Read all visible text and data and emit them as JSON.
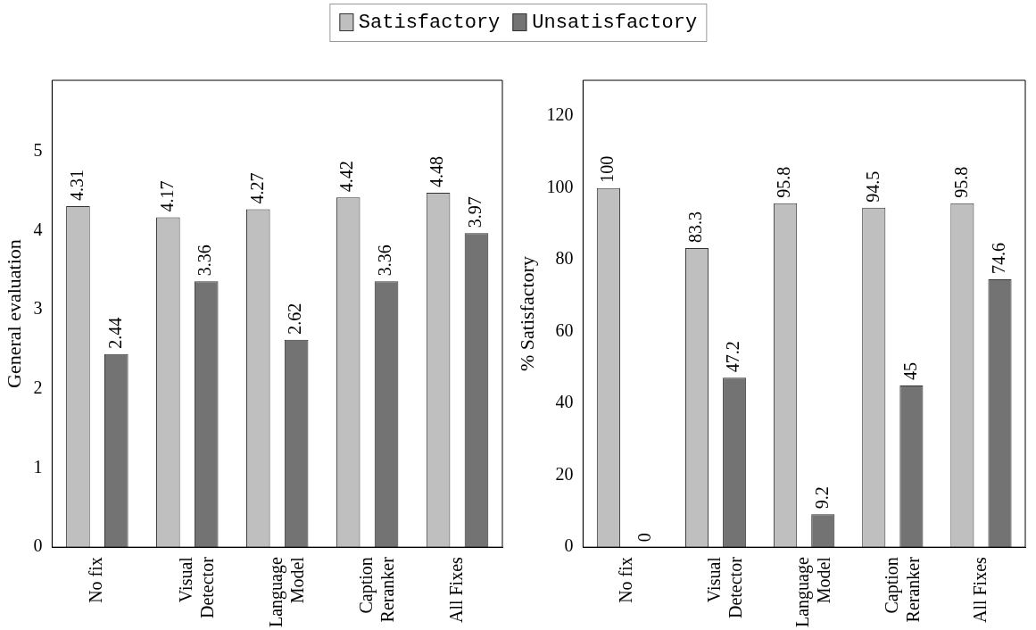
{
  "chart_data": [
    {
      "type": "bar",
      "ylabel": "General evaluation",
      "categories": [
        "No fix",
        "Visual\nDetector",
        "Language\nModel",
        "Caption\nReranker",
        "All Fixes"
      ],
      "ylim": [
        0,
        5.9
      ],
      "yticks": [
        0,
        1,
        2,
        3,
        4,
        5
      ],
      "legend": "top",
      "data_labels": true,
      "grid": false,
      "series": [
        {
          "name": "Satisfactory",
          "color": "#bfbfbf",
          "values": [
            4.31,
            4.17,
            4.27,
            4.42,
            4.48
          ]
        },
        {
          "name": "Unsatisfactory",
          "color": "#737373",
          "values": [
            2.44,
            3.36,
            2.62,
            3.36,
            3.97
          ]
        }
      ]
    },
    {
      "type": "bar",
      "ylabel": "% Satisfactory",
      "categories": [
        "No fix",
        "Visual\nDetector",
        "Language\nModel",
        "Caption\nReranker",
        "All Fixes"
      ],
      "ylim": [
        0,
        130
      ],
      "yticks": [
        0,
        20,
        40,
        60,
        80,
        100,
        120
      ],
      "data_labels": true,
      "grid": false,
      "series": [
        {
          "color": "#bfbfbf",
          "values": [
            100,
            83.3,
            95.8,
            94.5,
            95.8
          ]
        },
        {
          "color": "#737373",
          "values": [
            0,
            47.2,
            9.2,
            45,
            74.6
          ]
        }
      ]
    }
  ]
}
